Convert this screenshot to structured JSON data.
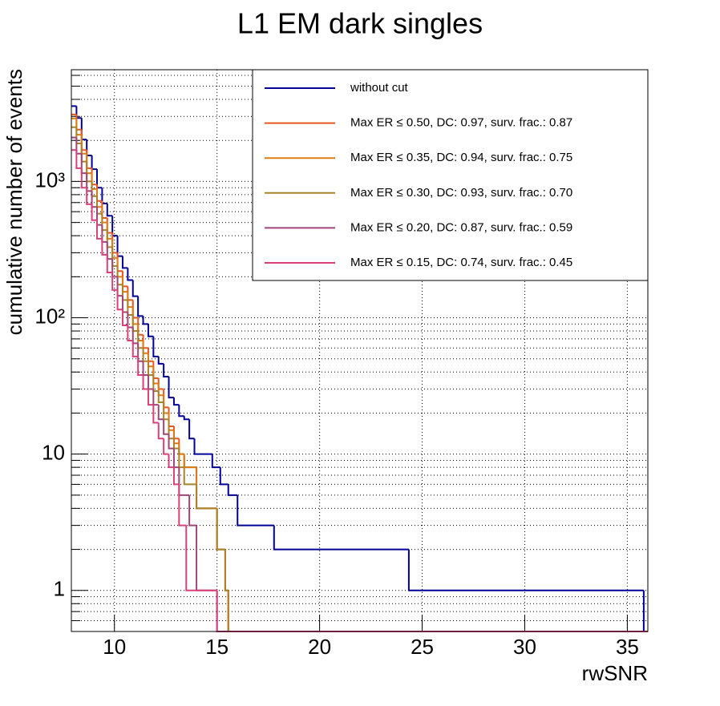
{
  "chart_data": {
    "type": "step",
    "title": "L1 EM dark singles",
    "x_label": "rwSNR",
    "y_label": "cumulative number of events",
    "log_y": true,
    "grid": true,
    "legend": "upper right",
    "xlim": [
      7.9,
      36
    ],
    "xticks": [
      10,
      15,
      20,
      25,
      30,
      35
    ],
    "ylim": [
      0.5,
      6600
    ],
    "yticks": [
      1,
      10,
      {
        "value": 100,
        "label": "10²"
      },
      {
        "value": 1000,
        "label": "10³"
      }
    ],
    "yminorticks": [
      0.6,
      0.7,
      0.8,
      0.9,
      2,
      3,
      4,
      5,
      6,
      7,
      8,
      9,
      20,
      30,
      40,
      50,
      60,
      70,
      80,
      90,
      200,
      300,
      400,
      500,
      600,
      700,
      800,
      900,
      2000,
      3000,
      4000,
      5000,
      6000
    ],
    "series": [
      {
        "name": "without cut",
        "color": "#000099",
        "x": [
          7.9,
          8.15,
          8.4,
          8.65,
          8.9,
          9.15,
          9.4,
          9.65,
          9.9,
          10.15,
          10.4,
          10.65,
          10.9,
          11.15,
          11.4,
          11.65,
          11.9,
          12.15,
          12.4,
          12.65,
          12.9,
          13.15,
          13.4,
          13.65,
          13.9,
          14.77,
          15.16,
          15.55,
          16.0,
          17.78,
          24.35,
          35.8
        ],
        "values": [
          3570,
          2920,
          2030,
          1550,
          1230,
          900,
          690,
          560,
          400,
          283,
          232,
          189,
          144,
          103,
          90,
          73,
          52,
          46,
          37,
          26,
          23,
          19,
          18,
          13,
          10,
          8,
          6,
          5,
          3,
          2,
          1,
          0
        ]
      },
      {
        "name": "Max ER ≤ 0.50, DC: 0.97, surv. frac.: 0.87",
        "color": "#e8561e",
        "x": [
          7.9,
          8.15,
          8.4,
          8.65,
          8.9,
          9.15,
          9.4,
          9.65,
          9.9,
          10.15,
          10.4,
          10.65,
          10.9,
          11.15,
          11.4,
          11.65,
          11.9,
          12.15,
          12.4,
          12.65,
          12.9,
          13.15,
          13.4,
          14.0,
          15.0,
          15.4,
          15.55
        ],
        "values": [
          3100,
          2400,
          1700,
          1250,
          950,
          720,
          540,
          420,
          300,
          220,
          170,
          135,
          100,
          75,
          60,
          48,
          36,
          30,
          22,
          16,
          13,
          10,
          8,
          4,
          2,
          1,
          0
        ]
      },
      {
        "name": "Max ER ≤ 0.35, DC: 0.94, surv. frac.: 0.75",
        "color": "#dd7a12",
        "x": [
          7.9,
          8.15,
          8.4,
          8.65,
          8.9,
          9.15,
          9.4,
          9.65,
          9.9,
          10.15,
          10.4,
          10.65,
          10.9,
          11.15,
          11.4,
          11.65,
          11.9,
          12.15,
          12.4,
          12.65,
          12.9,
          13.15,
          13.4,
          14.0,
          15.0,
          15.4,
          15.55
        ],
        "values": [
          2900,
          2200,
          1600,
          1150,
          880,
          650,
          500,
          380,
          275,
          200,
          155,
          120,
          90,
          68,
          55,
          44,
          33,
          27,
          20,
          15,
          12,
          10,
          8,
          4,
          2,
          1,
          0
        ]
      },
      {
        "name": "Max ER ≤ 0.30, DC: 0.93, surv. frac.: 0.70",
        "color": "#a8832c",
        "x": [
          7.9,
          8.15,
          8.4,
          8.65,
          8.9,
          9.15,
          9.4,
          9.65,
          9.9,
          10.15,
          10.4,
          10.65,
          10.9,
          11.15,
          11.4,
          11.65,
          11.9,
          12.15,
          12.4,
          12.65,
          12.9,
          13.15,
          13.4,
          14.0,
          15.0,
          15.4,
          15.55
        ],
        "values": [
          2500,
          1900,
          1400,
          1000,
          780,
          580,
          440,
          330,
          240,
          175,
          135,
          105,
          80,
          60,
          48,
          38,
          29,
          24,
          18,
          13,
          11,
          8,
          6,
          4,
          2,
          1,
          0
        ]
      },
      {
        "name": "Max ER ≤ 0.20, DC: 0.87, surv. frac.: 0.59",
        "color": "#a0457a",
        "x": [
          7.9,
          8.15,
          8.4,
          8.65,
          8.9,
          9.15,
          9.4,
          9.65,
          9.9,
          10.15,
          10.4,
          10.65,
          10.9,
          11.15,
          11.4,
          11.65,
          11.9,
          12.15,
          12.4,
          12.65,
          12.9,
          13.15,
          13.65,
          14.0,
          15.0
        ],
        "values": [
          2100,
          1600,
          1150,
          850,
          650,
          480,
          360,
          270,
          200,
          145,
          110,
          85,
          65,
          48,
          38,
          30,
          23,
          18,
          14,
          11,
          8,
          5,
          3,
          1,
          0
        ]
      },
      {
        "name": "Max ER ≤ 0.15, DC: 0.74, surv. frac.: 0.45",
        "color": "#d9407a",
        "x": [
          7.9,
          8.15,
          8.4,
          8.65,
          8.9,
          9.15,
          9.4,
          9.65,
          9.9,
          10.15,
          10.4,
          10.65,
          10.9,
          11.15,
          11.4,
          11.65,
          11.9,
          12.15,
          12.4,
          12.65,
          12.9,
          13.15,
          13.5,
          15.0
        ],
        "values": [
          1700,
          1250,
          900,
          680,
          520,
          380,
          290,
          215,
          160,
          115,
          88,
          68,
          52,
          38,
          30,
          23,
          17,
          13,
          10,
          8,
          6,
          3,
          1,
          0
        ]
      }
    ]
  }
}
